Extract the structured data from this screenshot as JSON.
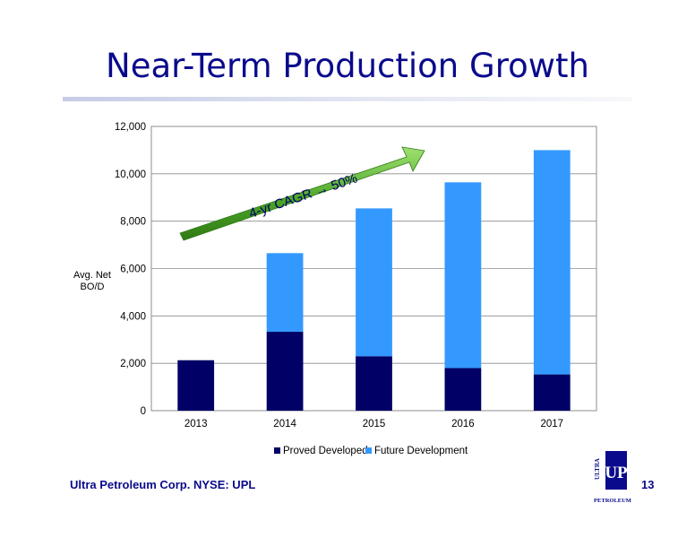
{
  "slide": {
    "title": "Near-Term Production Growth",
    "footer": "Ultra Petroleum Corp. NYSE: UPL",
    "page_number": "13"
  },
  "logo": {
    "top": "ULTRA",
    "mark": "UP",
    "bottom": "PETROLEUM"
  },
  "chart_data": {
    "type": "bar",
    "stacked": true,
    "categories": [
      "2013",
      "2014",
      "2015",
      "2016",
      "2017"
    ],
    "series": [
      {
        "name": "Proved Developed",
        "values": [
          2130,
          3330,
          2300,
          1800,
          1530
        ],
        "color": "#000066"
      },
      {
        "name": "Future Development",
        "values": [
          0,
          3320,
          6240,
          7840,
          9470
        ],
        "color": "#3399ff"
      }
    ],
    "ylabel": "Avg. Net BO/D",
    "ylim": [
      0,
      12000
    ],
    "yticks": [
      "0",
      "2,000",
      "4,000",
      "6,000",
      "8,000",
      "10,000",
      "12,000"
    ],
    "grid": true,
    "legend": "bottom",
    "annotation": "4-yr CAGR → 50%"
  }
}
